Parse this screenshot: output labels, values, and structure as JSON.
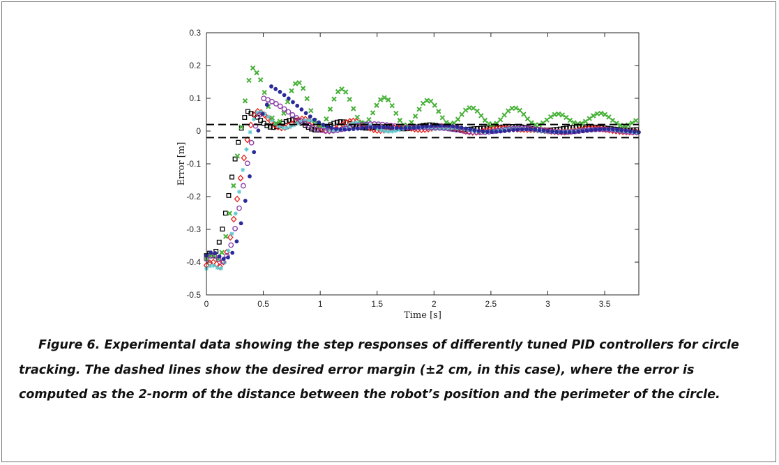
{
  "chart_data": {
    "type": "scatter",
    "xlabel": "Time [s]",
    "ylabel": "Error [m]",
    "xlim": [
      0,
      3.8
    ],
    "ylim": [
      -0.5,
      0.3
    ],
    "xticks": [
      0,
      0.5,
      1,
      1.5,
      2,
      2.5,
      3,
      3.5
    ],
    "xtick_labels": [
      "0",
      "0.5",
      "1",
      "1.5",
      "2",
      "2.5",
      "3",
      "3.5"
    ],
    "yticks": [
      -0.5,
      -0.4,
      -0.3,
      -0.2,
      -0.1,
      0,
      0.1,
      0.2,
      0.3
    ],
    "ytick_labels": [
      "-0.5",
      "-0.4",
      "-0.3",
      "-0.2",
      "-0.1",
      "0",
      "0.1",
      "0.2",
      "0.3"
    ],
    "grid": false,
    "reference_lines": [
      {
        "y": 0.02,
        "style": "dashed",
        "color": "#000000"
      },
      {
        "y": -0.02,
        "style": "dashed",
        "color": "#000000"
      }
    ],
    "series": [
      {
        "marker": "square",
        "color": "#000000",
        "x0": 0.0,
        "start": -0.38,
        "rise_start": 0.05,
        "rise_end": 0.38,
        "amp": 0.055,
        "decay": 1.3,
        "period": 0.4,
        "phase": 1.6,
        "bias": 0.008
      },
      {
        "marker": "diamond",
        "color": "#e8201a",
        "x0": 0.0,
        "start": -0.41,
        "rise_start": 0.12,
        "rise_end": 0.45,
        "amp": 0.06,
        "decay": 1.0,
        "period": 0.42,
        "phase": 1.4,
        "bias": 0.0
      },
      {
        "marker": "asterisk",
        "color": "#5fc8cf",
        "x0": 0.0,
        "start": -0.42,
        "rise_start": 0.12,
        "rise_end": 0.46,
        "amp": 0.06,
        "decay": 1.1,
        "period": 0.45,
        "phase": 1.3,
        "bias": 0.0
      },
      {
        "marker": "x-mark",
        "color": "#44b035",
        "x0": 0.0,
        "start": -0.39,
        "rise_start": 0.1,
        "rise_end": 0.43,
        "amp": 0.18,
        "decay": 0.55,
        "period": 0.38,
        "phase": 1.6,
        "bias": 0.02
      },
      {
        "marker": "circle",
        "color": "#8a3fa8",
        "x0": 0.0,
        "start": -0.39,
        "rise_start": 0.15,
        "rise_end": 0.5,
        "amp": 0.1,
        "decay": 1.4,
        "period": 1.2,
        "phase": 0.0,
        "bias": 0.0
      },
      {
        "marker": "dot",
        "color": "#2a2a9a",
        "x0": 0.0,
        "start": -0.38,
        "rise_start": 0.2,
        "rise_end": 0.55,
        "amp": 0.14,
        "decay": 1.6,
        "period": 1.5,
        "phase": 0.0,
        "bias": 0.0
      }
    ]
  },
  "caption": "Figure 6. Experimental data showing the step responses of differently tuned PID controllers for circle tracking. The dashed lines show the desired error margin (±2 cm, in this case), where the error is computed as the 2-norm of the distance between the robot’s position and the perimeter of the circle."
}
